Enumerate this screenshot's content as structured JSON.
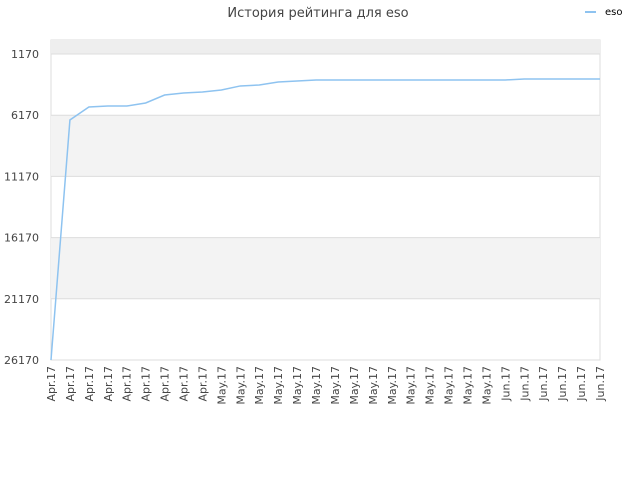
{
  "chart_data": {
    "type": "line",
    "title": "История рейтинга для eso",
    "categories": [
      "Apr.17",
      "Apr.17",
      "Apr.17",
      "Apr.17",
      "Apr.17",
      "Apr.17",
      "Apr.17",
      "Apr.17",
      "Apr.17",
      "May.17",
      "May.17",
      "May.17",
      "May.17",
      "May.17",
      "May.17",
      "May.17",
      "May.17",
      "May.17",
      "May.17",
      "May.17",
      "May.17",
      "May.17",
      "May.17",
      "May.17",
      "Jun.17",
      "Jun.17",
      "Jun.17",
      "Jun.17",
      "Jun.17",
      "Jun.17"
    ],
    "series": [
      {
        "name": "eso",
        "color": "#8ec3f0",
        "values": [
          26170,
          6560,
          5500,
          5420,
          5420,
          5170,
          4520,
          4360,
          4270,
          4110,
          3780,
          3700,
          3460,
          3380,
          3290,
          3290,
          3290,
          3290,
          3290,
          3290,
          3290,
          3290,
          3290,
          3290,
          3290,
          3210,
          3210,
          3210,
          3210,
          3210
        ]
      }
    ],
    "ylim": [
      26170,
      26
    ],
    "yticks": [
      1170,
      6170,
      11170,
      16170,
      21170,
      26170
    ],
    "grid": true,
    "legend": "upper right"
  }
}
